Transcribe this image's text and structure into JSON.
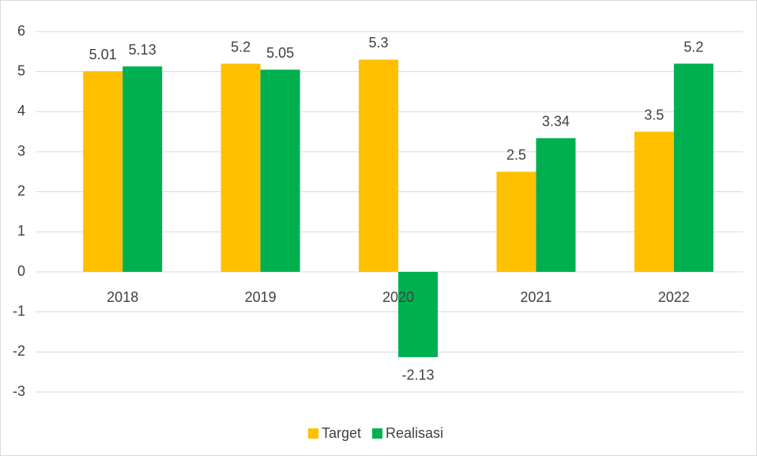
{
  "chart_data": {
    "type": "bar",
    "categories": [
      "2018",
      "2019",
      "2020",
      "2021",
      "2022"
    ],
    "series": [
      {
        "name": "Target",
        "color": "#ffc000",
        "values": [
          5.01,
          5.2,
          5.3,
          2.5,
          3.5
        ]
      },
      {
        "name": "Realisasi",
        "color": "#00b050",
        "values": [
          5.13,
          5.05,
          -2.13,
          3.34,
          5.2
        ]
      }
    ],
    "ylim": [
      -3,
      6
    ],
    "yticks": [
      -3,
      -2,
      -1,
      0,
      1,
      2,
      3,
      4,
      5,
      6
    ],
    "grid": true,
    "legend": "bottom"
  }
}
